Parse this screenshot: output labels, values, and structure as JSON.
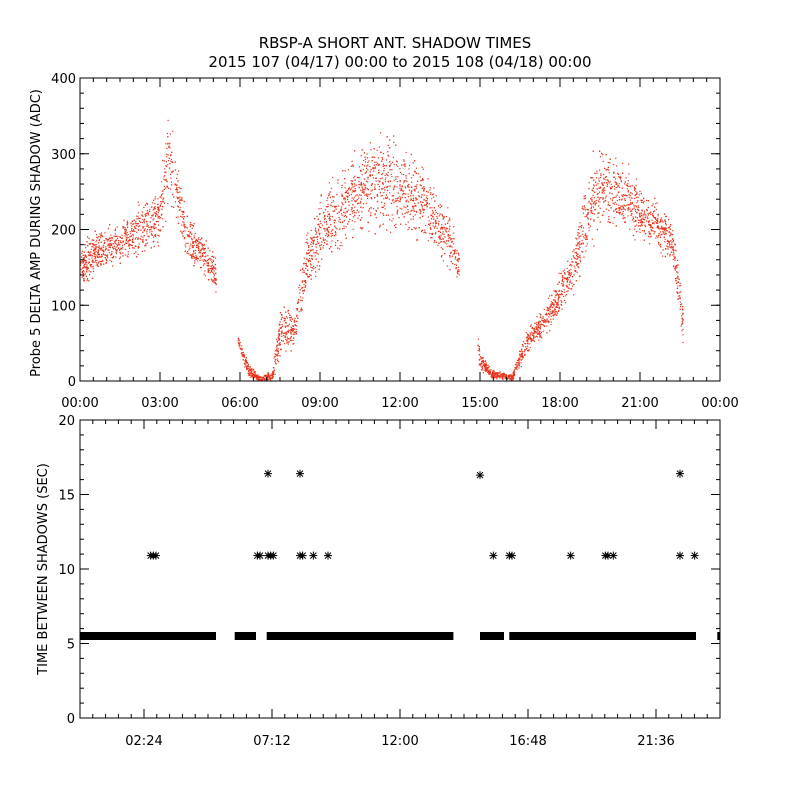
{
  "title": {
    "line1": "RBSP-A SHORT ANT. SHADOW TIMES",
    "line2": "2015 107 (04/17) 00:00 to 2015 108 (04/18) 00:00"
  },
  "colors": {
    "points_top": "#e8341c",
    "points_bottom": "#000000",
    "axes": "#000000",
    "background": "#ffffff"
  },
  "chart_data": [
    {
      "type": "scatter",
      "ylabel": "Probe 5 DELTA AMP DURING SHADOW (ADC)",
      "xlabel": "",
      "x_unit": "hours",
      "xlim": [
        0,
        24
      ],
      "ylim": [
        0,
        400
      ],
      "xtick_labels": [
        "00:00",
        "03:00",
        "06:00",
        "09:00",
        "12:00",
        "15:00",
        "18:00",
        "21:00",
        "00:00"
      ],
      "ytick_labels": [
        "0",
        "100",
        "200",
        "300",
        "400"
      ],
      "ytick_values": [
        0,
        100,
        200,
        300,
        400
      ],
      "envelope": [
        {
          "x": 0.0,
          "y": 150,
          "spread": 25
        },
        {
          "x": 0.5,
          "y": 170,
          "spread": 25
        },
        {
          "x": 1.0,
          "y": 175,
          "spread": 25
        },
        {
          "x": 1.5,
          "y": 185,
          "spread": 25
        },
        {
          "x": 2.0,
          "y": 195,
          "spread": 30
        },
        {
          "x": 2.5,
          "y": 210,
          "spread": 35
        },
        {
          "x": 2.9,
          "y": 205,
          "spread": 40
        },
        {
          "x": 3.3,
          "y": 290,
          "spread": 70
        },
        {
          "x": 3.6,
          "y": 250,
          "spread": 40
        },
        {
          "x": 4.0,
          "y": 190,
          "spread": 30
        },
        {
          "x": 4.5,
          "y": 170,
          "spread": 25
        },
        {
          "x": 5.0,
          "y": 145,
          "spread": 25
        },
        {
          "x": 6.0,
          "y": 45,
          "spread": 10
        },
        {
          "x": 6.3,
          "y": 15,
          "spread": 8
        },
        {
          "x": 6.7,
          "y": 3,
          "spread": 3
        },
        {
          "x": 7.2,
          "y": 8,
          "spread": 6
        },
        {
          "x": 7.5,
          "y": 70,
          "spread": 30
        },
        {
          "x": 8.0,
          "y": 65,
          "spread": 20
        },
        {
          "x": 8.5,
          "y": 160,
          "spread": 40
        },
        {
          "x": 9.0,
          "y": 200,
          "spread": 45
        },
        {
          "x": 10.0,
          "y": 240,
          "spread": 50
        },
        {
          "x": 11.0,
          "y": 265,
          "spread": 60
        },
        {
          "x": 12.0,
          "y": 255,
          "spread": 55
        },
        {
          "x": 13.0,
          "y": 230,
          "spread": 45
        },
        {
          "x": 14.0,
          "y": 180,
          "spread": 30
        },
        {
          "x": 15.0,
          "y": 30,
          "spread": 12
        },
        {
          "x": 15.4,
          "y": 10,
          "spread": 6
        },
        {
          "x": 16.2,
          "y": 5,
          "spread": 4
        },
        {
          "x": 16.7,
          "y": 50,
          "spread": 15
        },
        {
          "x": 17.5,
          "y": 85,
          "spread": 20
        },
        {
          "x": 18.5,
          "y": 150,
          "spread": 30
        },
        {
          "x": 19.0,
          "y": 220,
          "spread": 50
        },
        {
          "x": 19.5,
          "y": 260,
          "spread": 50
        },
        {
          "x": 20.5,
          "y": 240,
          "spread": 40
        },
        {
          "x": 21.5,
          "y": 210,
          "spread": 30
        },
        {
          "x": 22.2,
          "y": 180,
          "spread": 30
        },
        {
          "x": 22.6,
          "y": 80,
          "spread": 30
        }
      ],
      "gaps_hours": [
        [
          5.1,
          5.9
        ],
        [
          14.2,
          14.9
        ]
      ]
    },
    {
      "type": "scatter",
      "marker": "asterisk",
      "ylabel": "TIME BETWEEN SHADOWS (SEC)",
      "xlabel": "",
      "x_unit": "hours",
      "xlim": [
        0,
        24
      ],
      "ylim": [
        0,
        20
      ],
      "xtick_labels": [
        "02:24",
        "07:12",
        "12:00",
        "16:48",
        "21:36"
      ],
      "xtick_values": [
        2.4,
        7.2,
        12.0,
        16.8,
        21.6
      ],
      "ytick_labels": [
        "0",
        "5",
        "10",
        "15",
        "20"
      ],
      "ytick_values": [
        0,
        5,
        10,
        15,
        20
      ],
      "baseline_value": 5.5,
      "baseline_segments": [
        [
          0.0,
          5.1
        ],
        [
          5.8,
          6.6
        ],
        [
          7.0,
          14.0
        ],
        [
          15.0,
          15.9
        ],
        [
          16.1,
          23.1
        ],
        [
          23.9,
          24.0
        ]
      ],
      "points": [
        {
          "x": 2.65,
          "y": 10.9
        },
        {
          "x": 2.75,
          "y": 10.9
        },
        {
          "x": 2.85,
          "y": 10.9
        },
        {
          "x": 6.65,
          "y": 10.9
        },
        {
          "x": 6.75,
          "y": 10.9
        },
        {
          "x": 7.05,
          "y": 16.4
        },
        {
          "x": 7.05,
          "y": 10.9
        },
        {
          "x": 7.15,
          "y": 10.9
        },
        {
          "x": 7.25,
          "y": 10.9
        },
        {
          "x": 8.25,
          "y": 16.4
        },
        {
          "x": 8.25,
          "y": 10.9
        },
        {
          "x": 8.35,
          "y": 10.9
        },
        {
          "x": 8.75,
          "y": 10.9
        },
        {
          "x": 9.3,
          "y": 10.9
        },
        {
          "x": 15.0,
          "y": 16.3
        },
        {
          "x": 15.5,
          "y": 10.9
        },
        {
          "x": 16.1,
          "y": 10.9
        },
        {
          "x": 16.2,
          "y": 10.9
        },
        {
          "x": 18.4,
          "y": 10.9
        },
        {
          "x": 19.7,
          "y": 10.9
        },
        {
          "x": 19.8,
          "y": 10.9
        },
        {
          "x": 20.0,
          "y": 10.9
        },
        {
          "x": 22.5,
          "y": 16.4
        },
        {
          "x": 22.5,
          "y": 10.9
        },
        {
          "x": 23.05,
          "y": 10.9
        }
      ]
    }
  ]
}
